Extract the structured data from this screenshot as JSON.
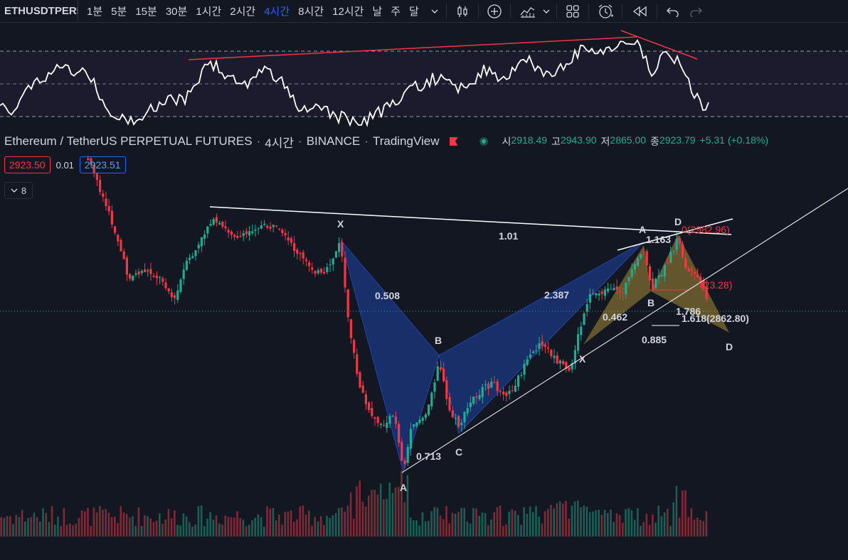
{
  "toolbar": {
    "symbol": "ETHUSDTPERP",
    "intervals": [
      "1분",
      "5분",
      "15분",
      "30분",
      "1시간",
      "2시간",
      "4시간",
      "8시간",
      "12시간",
      "날",
      "주",
      "달"
    ],
    "active_interval": "4시간",
    "icons": [
      "chevron-down-icon",
      "candles-icon",
      "plus-circle-icon",
      "indicators-icon",
      "chevron-down-icon",
      "layout-grid-icon",
      "alert-clock-icon",
      "replay-icon",
      "undo-icon",
      "redo-icon"
    ]
  },
  "legend": {
    "title": "Ethereum / TetherUS PERPETUAL FUTURES",
    "interval": "4시간",
    "exchange": "BINANCE",
    "source": "TradingView",
    "ohlc": {
      "open_label": "시",
      "open": "2918.49",
      "high_label": "고",
      "high": "2943.90",
      "low_label": "저",
      "low": "2865.00",
      "close_label": "종",
      "close": "2923.79",
      "change": "+5.31 (+0.18%)"
    },
    "colors": {
      "up": "#22ab94",
      "down": "#f23645"
    }
  },
  "trade": {
    "sell_price": "2923.50",
    "spread": "0.01",
    "buy_price": "2923.51"
  },
  "indicators_toggle": {
    "count": "8"
  },
  "annotations": {
    "big_pattern": {
      "x": "X",
      "a": "A",
      "b": "B",
      "c": "C",
      "xa_ratio": "0.508",
      "ab_ratio": "0.713",
      "bc_ratio": "2.387",
      "xb_ratio": "1.01"
    },
    "small_pattern": {
      "x": "X",
      "a": "A",
      "b": "B",
      "d_top": "D",
      "d_bottom": "D",
      "r1": "0.462",
      "r2": "1.163",
      "r3": "1.786",
      "r4": "0.885",
      "target_1": "0(2982.96)",
      "target_2": "(23.28)",
      "target_3": "1.618(2862.80)"
    }
  }
}
